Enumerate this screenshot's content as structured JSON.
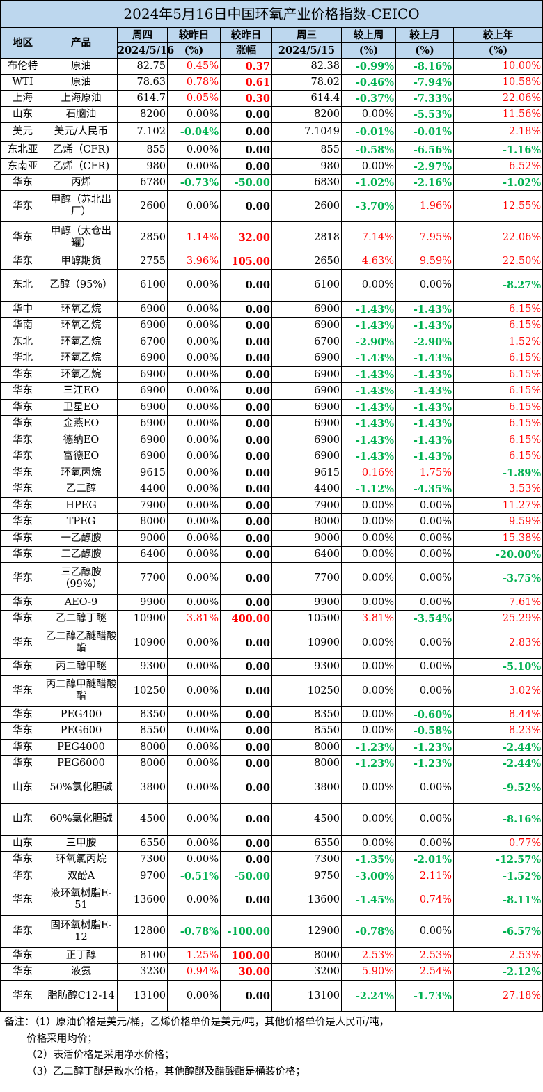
{
  "title": "2024年5月16日中国环氧产业价格指数-CEICO",
  "headers": {
    "region": "地区",
    "product": "产品",
    "thu": "周四",
    "thu_date": "2024/5/16",
    "vs_yesterday_pct": "较昨日",
    "pct_unit": "(%)",
    "vs_yesterday_chg": "较昨日",
    "chg_label": "涨幅",
    "wed": "周三",
    "wed_date": "2024/5/15",
    "vs_last_week": "较上周",
    "vs_last_month": "较上月",
    "vs_last_year": "较上年"
  },
  "colors": {
    "header_bg": "#bdd7ee",
    "up": "#ff0000",
    "down": "#00b050"
  },
  "rows": [
    {
      "region": "布伦特",
      "product": "原油",
      "thu": "82.75",
      "pct": "0.45%",
      "chg": "0.37",
      "wed": "82.38",
      "wk": "-0.99%",
      "mo": "-8.16%",
      "yr": "10.00%",
      "h": 23
    },
    {
      "region": "WTI",
      "product": "原油",
      "thu": "78.63",
      "pct": "0.78%",
      "chg": "0.61",
      "wed": "78.02",
      "wk": "-0.46%",
      "mo": "-7.94%",
      "yr": "10.58%",
      "h": 23
    },
    {
      "region": "上海",
      "product": "上海原油",
      "thu": "614.7",
      "pct": "0.05%",
      "chg": "0.30",
      "wed": "614.4",
      "wk": "-0.37%",
      "mo": "-7.33%",
      "yr": "22.06%",
      "h": 23
    },
    {
      "region": "山东",
      "product": "石脑油",
      "thu": "8200",
      "pct": "0.00%",
      "chg": "0.00",
      "wed": "8200",
      "wk": "0.00%",
      "mo": "-5.53%",
      "yr": "11.56%",
      "h": 23
    },
    {
      "region": "美元",
      "product": "美元/人民币",
      "thu": "7.102",
      "pct": "-0.04%",
      "chg": "0.00",
      "wed": "7.1049",
      "wk": "-0.01%",
      "mo": "-0.01%",
      "yr": "2.18%",
      "h": 28
    },
    {
      "region": "东北亚",
      "product": "乙烯（CFR)",
      "thu": "855",
      "pct": "0.00%",
      "chg": "0.00",
      "wed": "855",
      "wk": "-0.58%",
      "mo": "-6.56%",
      "yr": "-1.16%",
      "h": 24
    },
    {
      "region": "东南亚",
      "product": "乙烯（CFR)",
      "thu": "980",
      "pct": "0.00%",
      "chg": "0.00",
      "wed": "980",
      "wk": "0.00%",
      "mo": "-2.97%",
      "yr": "6.52%",
      "h": 23
    },
    {
      "region": "华东",
      "product": "丙烯",
      "thu": "6780",
      "pct": "-0.73%",
      "chg": "-50.00",
      "wed": "6830",
      "wk": "-1.02%",
      "mo": "-2.16%",
      "yr": "-1.02%",
      "h": 23
    },
    {
      "region": "华东",
      "product": "甲醇（苏北出厂）",
      "thu": "2600",
      "pct": "0.00%",
      "chg": "0.00",
      "wed": "2600",
      "wk": "-3.70%",
      "mo": "1.96%",
      "yr": "12.55%",
      "h": 45
    },
    {
      "region": "华东",
      "product": "甲醇（太仓出罐）",
      "thu": "2850",
      "pct": "1.14%",
      "chg": "32.00",
      "wed": "2818",
      "wk": "7.14%",
      "mo": "7.95%",
      "yr": "22.06%",
      "h": 45
    },
    {
      "region": "华东",
      "product": "甲醇期货",
      "thu": "2755",
      "pct": "3.96%",
      "chg": "105.00",
      "wed": "2650",
      "wk": "4.63%",
      "mo": "9.59%",
      "yr": "22.50%",
      "h": 23
    },
    {
      "region": "东北",
      "product": "乙醇（95%）",
      "thu": "6100",
      "pct": "0.00%",
      "chg": "0.00",
      "wed": "6100",
      "wk": "0.00%",
      "mo": "0.00%",
      "yr": "-8.27%",
      "h": 46
    },
    {
      "region": "华中",
      "product": "环氧乙烷",
      "thu": "6900",
      "pct": "0.00%",
      "chg": "0.00",
      "wed": "6900",
      "wk": "-1.43%",
      "mo": "-1.43%",
      "yr": "6.15%",
      "h": 23
    },
    {
      "region": "华南",
      "product": "环氧乙烷",
      "thu": "6900",
      "pct": "0.00%",
      "chg": "0.00",
      "wed": "6900",
      "wk": "-1.43%",
      "mo": "-1.43%",
      "yr": "6.15%",
      "h": 24
    },
    {
      "region": "东北",
      "product": "环氧乙烷",
      "thu": "6700",
      "pct": "0.00%",
      "chg": "0.00",
      "wed": "6700",
      "wk": "-2.90%",
      "mo": "-2.90%",
      "yr": "1.52%",
      "h": 23
    },
    {
      "region": "华北",
      "product": "环氧乙烷",
      "thu": "6900",
      "pct": "0.00%",
      "chg": "0.00",
      "wed": "6900",
      "wk": "-1.43%",
      "mo": "-1.43%",
      "yr": "6.15%",
      "h": 24
    },
    {
      "region": "华东",
      "product": "环氧乙烷",
      "thu": "6900",
      "pct": "0.00%",
      "chg": "0.00",
      "wed": "6900",
      "wk": "-1.43%",
      "mo": "-1.43%",
      "yr": "6.15%",
      "h": 23
    },
    {
      "region": "华东",
      "product": "三江EO",
      "thu": "6900",
      "pct": "0.00%",
      "chg": "0.00",
      "wed": "6900",
      "wk": "-1.43%",
      "mo": "-1.43%",
      "yr": "6.15%",
      "h": 24
    },
    {
      "region": "华东",
      "product": "卫星EO",
      "thu": "6900",
      "pct": "0.00%",
      "chg": "0.00",
      "wed": "6900",
      "wk": "-1.43%",
      "mo": "-1.43%",
      "yr": "6.15%",
      "h": 23
    },
    {
      "region": "华东",
      "product": "金燕EO",
      "thu": "6900",
      "pct": "0.00%",
      "chg": "0.00",
      "wed": "6900",
      "wk": "-1.43%",
      "mo": "-1.43%",
      "yr": "6.15%",
      "h": 24
    },
    {
      "region": "华东",
      "product": "德纳EO",
      "thu": "6900",
      "pct": "0.00%",
      "chg": "0.00",
      "wed": "6900",
      "wk": "-1.43%",
      "mo": "-1.43%",
      "yr": "6.15%",
      "h": 23
    },
    {
      "region": "华东",
      "product": "富德EO",
      "thu": "6900",
      "pct": "0.00%",
      "chg": "0.00",
      "wed": "6900",
      "wk": "-1.43%",
      "mo": "-1.43%",
      "yr": "6.15%",
      "h": 24
    },
    {
      "region": "华东",
      "product": "环氧丙烷",
      "thu": "9615",
      "pct": "0.00%",
      "chg": "0.00",
      "wed": "9615",
      "wk": "0.16%",
      "mo": "1.75%",
      "yr": "-1.89%",
      "h": 23
    },
    {
      "region": "华东",
      "product": "乙二醇",
      "thu": "4400",
      "pct": "0.00%",
      "chg": "0.00",
      "wed": "4400",
      "wk": "-1.12%",
      "mo": "-4.35%",
      "yr": "3.53%",
      "h": 24
    },
    {
      "region": "华东",
      "product": "HPEG",
      "thu": "7900",
      "pct": "0.00%",
      "chg": "0.00",
      "wed": "7900",
      "wk": "0.00%",
      "mo": "0.00%",
      "yr": "11.27%",
      "h": 23
    },
    {
      "region": "华东",
      "product": "TPEG",
      "thu": "8000",
      "pct": "0.00%",
      "chg": "0.00",
      "wed": "8000",
      "wk": "0.00%",
      "mo": "0.00%",
      "yr": "9.59%",
      "h": 24
    },
    {
      "region": "华东",
      "product": "一乙醇胺",
      "thu": "9000",
      "pct": "0.00%",
      "chg": "0.00",
      "wed": "9000",
      "wk": "0.00%",
      "mo": "0.00%",
      "yr": "15.38%",
      "h": 23
    },
    {
      "region": "华东",
      "product": "二乙醇胺",
      "thu": "6400",
      "pct": "0.00%",
      "chg": "0.00",
      "wed": "6400",
      "wk": "0.00%",
      "mo": "0.00%",
      "yr": "-20.00%",
      "h": 23
    },
    {
      "region": "华东",
      "product": "三乙醇胺（99%）",
      "thu": "7700",
      "pct": "0.00%",
      "chg": "0.00",
      "wed": "7700",
      "wk": "0.00%",
      "mo": "0.00%",
      "yr": "-3.75%",
      "h": 46
    },
    {
      "region": "华东",
      "product": "AEO-9",
      "thu": "9900",
      "pct": "0.00%",
      "chg": "0.00",
      "wed": "9900",
      "wk": "0.00%",
      "mo": "0.00%",
      "yr": "7.61%",
      "h": 23
    },
    {
      "region": "华东",
      "product": "乙二醇丁醚",
      "thu": "10900",
      "pct": "3.81%",
      "chg": "400.00",
      "wed": "10500",
      "wk": "3.81%",
      "mo": "-3.54%",
      "yr": "25.29%",
      "h": 24
    },
    {
      "region": "华东",
      "product": "乙二醇乙醚醋酸酯",
      "thu": "10900",
      "pct": "0.00%",
      "chg": "0.00",
      "wed": "10900",
      "wk": "0.00%",
      "mo": "0.00%",
      "yr": "2.83%",
      "h": 45
    },
    {
      "region": "华东",
      "product": "丙二醇甲醚",
      "thu": "9300",
      "pct": "0.00%",
      "chg": "0.00",
      "wed": "9300",
      "wk": "0.00%",
      "mo": "0.00%",
      "yr": "-5.10%",
      "h": 24
    },
    {
      "region": "华东",
      "product": "丙二醇甲醚醋酸酯",
      "thu": "10250",
      "pct": "0.00%",
      "chg": "0.00",
      "wed": "10250",
      "wk": "0.00%",
      "mo": "0.00%",
      "yr": "3.02%",
      "h": 45
    },
    {
      "region": "华东",
      "product": "PEG400",
      "thu": "8350",
      "pct": "0.00%",
      "chg": "0.00",
      "wed": "8350",
      "wk": "0.00%",
      "mo": "-0.60%",
      "yr": "8.44%",
      "h": 23
    },
    {
      "region": "华东",
      "product": "PEG600",
      "thu": "8550",
      "pct": "0.00%",
      "chg": "0.00",
      "wed": "8550",
      "wk": "0.00%",
      "mo": "-0.58%",
      "yr": "8.23%",
      "h": 24
    },
    {
      "region": "华东",
      "product": "PEG4000",
      "thu": "8000",
      "pct": "0.00%",
      "chg": "0.00",
      "wed": "8000",
      "wk": "-1.23%",
      "mo": "-1.23%",
      "yr": "-2.44%",
      "h": 23
    },
    {
      "region": "华东",
      "product": "PEG6000",
      "thu": "8000",
      "pct": "0.00%",
      "chg": "0.00",
      "wed": "8000",
      "wk": "-1.23%",
      "mo": "-1.23%",
      "yr": "-2.44%",
      "h": 24
    },
    {
      "region": "山东",
      "product": "50%氯化胆碱",
      "thu": "3800",
      "pct": "0.00%",
      "chg": "0.00",
      "wed": "3800",
      "wk": "0.00%",
      "mo": "0.00%",
      "yr": "-9.52%",
      "h": 45
    },
    {
      "region": "山东",
      "product": "60%氯化胆碱",
      "thu": "4500",
      "pct": "0.00%",
      "chg": "0.00",
      "wed": "4500",
      "wk": "0.00%",
      "mo": "0.00%",
      "yr": "-8.16%",
      "h": 46
    },
    {
      "region": "山东",
      "product": "三甲胺",
      "thu": "6550",
      "pct": "0.00%",
      "chg": "0.00",
      "wed": "6550",
      "wk": "0.00%",
      "mo": "0.00%",
      "yr": "0.77%",
      "h": 23
    },
    {
      "region": "华东",
      "product": "环氧氯丙烷",
      "thu": "7300",
      "pct": "0.00%",
      "chg": "0.00",
      "wed": "7300",
      "wk": "-1.35%",
      "mo": "-2.01%",
      "yr": "-12.57%",
      "h": 24
    },
    {
      "region": "华东",
      "product": "双酚A",
      "thu": "9700",
      "pct": "-0.51%",
      "chg": "-50.00",
      "wed": "9750",
      "wk": "-3.00%",
      "mo": "2.11%",
      "yr": "-1.52%",
      "h": 23
    },
    {
      "region": "华东",
      "product": "液环氧树脂E-51",
      "thu": "13600",
      "pct": "0.00%",
      "chg": "0.00",
      "wed": "13600",
      "wk": "-1.45%",
      "mo": "0.74%",
      "yr": "-8.11%",
      "h": 45
    },
    {
      "region": "华东",
      "product": "固环氧树脂E-12",
      "thu": "12800",
      "pct": "-0.78%",
      "chg": "-100.00",
      "wed": "12900",
      "wk": "-0.78%",
      "mo": "0.00%",
      "yr": "-6.57%",
      "h": 46
    },
    {
      "region": "华东",
      "product": "正丁醇",
      "thu": "8100",
      "pct": "1.25%",
      "chg": "100.00",
      "wed": "8000",
      "wk": "2.53%",
      "mo": "2.53%",
      "yr": "2.53%",
      "h": 23
    },
    {
      "region": "华东",
      "product": "液氨",
      "thu": "3230",
      "pct": "0.94%",
      "chg": "30.00",
      "wed": "3200",
      "wk": "5.90%",
      "mo": "2.54%",
      "yr": "-2.12%",
      "h": 24
    },
    {
      "region": "华东",
      "product": "脂肪醇C12-14",
      "thu": "13100",
      "pct": "0.00%",
      "chg": "0.00",
      "wed": "13100",
      "wk": "-2.24%",
      "mo": "-1.73%",
      "yr": "27.18%",
      "h": 45
    }
  ],
  "notes": [
    "备注：（1）原油价格是美元/桶，乙烯价格单价是美元/吨，其他价格单价是人民币/吨，",
    "       价格采用均价；",
    "       （2）表活价格是采用净水价格；",
    "       （3）乙二醇丁醚是散水价格，其他醇醚及醋酸酯是桶装价格；"
  ]
}
